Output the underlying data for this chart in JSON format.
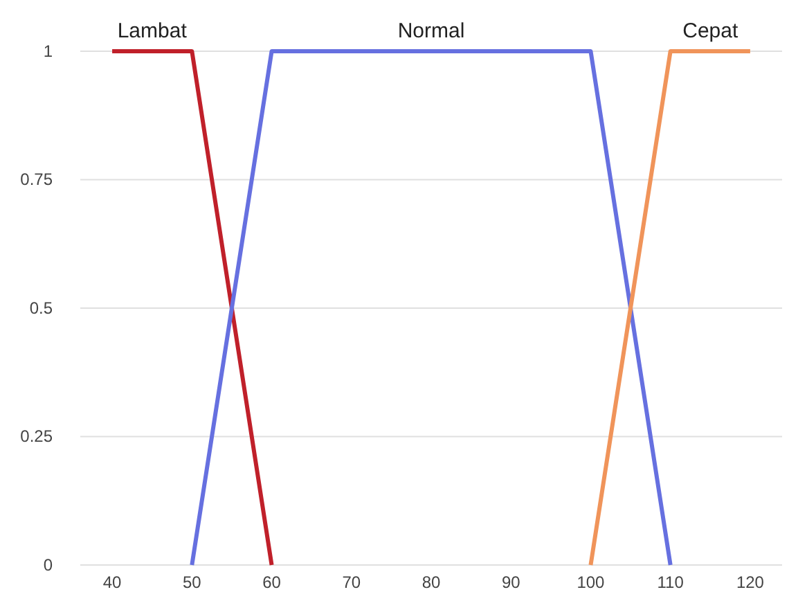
{
  "chart_data": {
    "type": "line",
    "xlim": [
      36,
      124
    ],
    "xticks": [
      40,
      50,
      60,
      70,
      80,
      90,
      100,
      110,
      120
    ],
    "ylim": [
      0,
      1
    ],
    "yticks": [
      0,
      0.25,
      0.5,
      0.75,
      1
    ],
    "grid": "y",
    "legend": false,
    "marker": "none",
    "line_style": "solid",
    "series": [
      {
        "name": "Lambat",
        "color": "#c0202a",
        "x": [
          40,
          50,
          60
        ],
        "values": [
          1,
          1,
          0
        ]
      },
      {
        "name": "Normal",
        "color": "#6670e0",
        "x": [
          50,
          60,
          100,
          110
        ],
        "values": [
          0,
          1,
          1,
          0
        ]
      },
      {
        "name": "Cepat",
        "color": "#f0945a",
        "x": [
          100,
          110,
          120
        ],
        "values": [
          0,
          1,
          1
        ]
      }
    ]
  }
}
